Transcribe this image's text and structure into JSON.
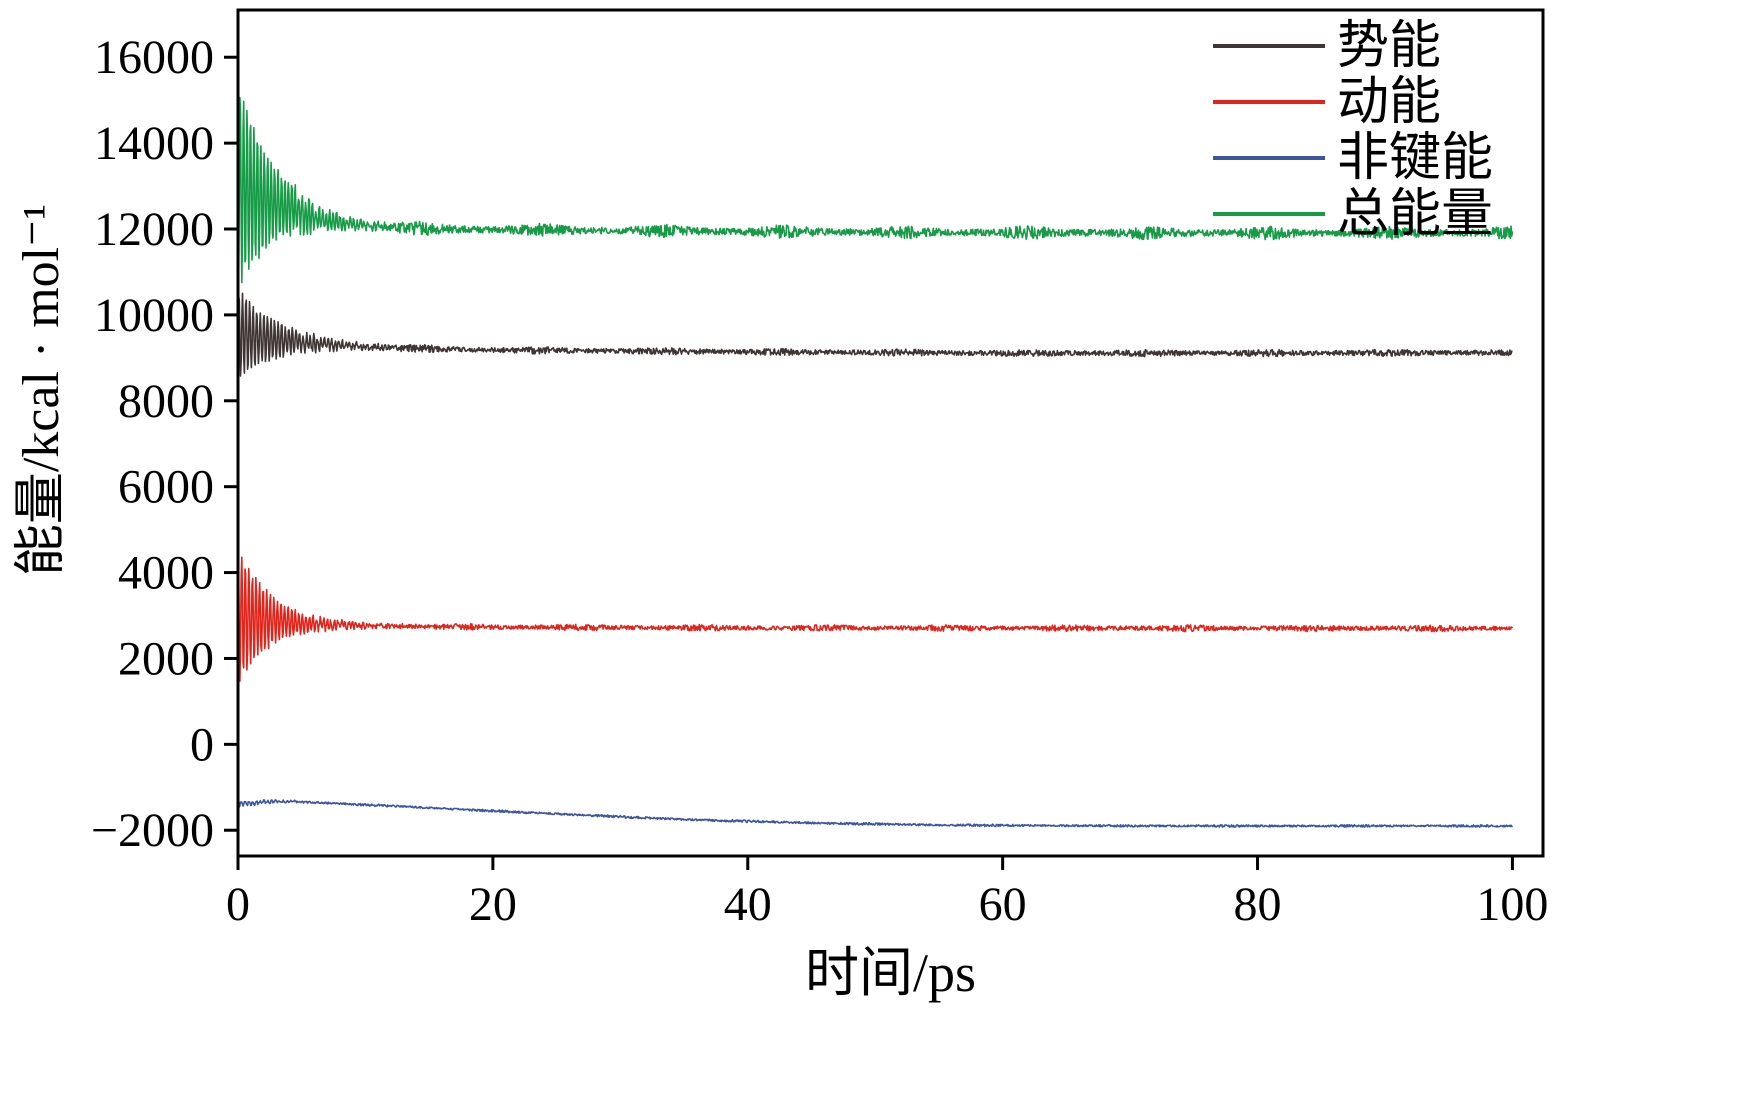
{
  "figure": {
    "background": "#ffffff",
    "axis_color": "#000000"
  },
  "chart_data": {
    "type": "line",
    "title": "",
    "xlabel": "时间/ps",
    "ylabel": "能量/kcal · mol⁻¹",
    "xlim": [
      0,
      102.4
    ],
    "ylim": [
      -2600,
      17100
    ],
    "x_ticks": [
      0,
      20,
      40,
      60,
      80,
      100
    ],
    "y_ticks": [
      -2000,
      0,
      2000,
      4000,
      6000,
      8000,
      10000,
      12000,
      14000,
      16000
    ],
    "grid": false,
    "legend_position": "top-right",
    "sample_step_ps": 0.05,
    "x_end_ps": 100,
    "series": [
      {
        "name": "势能",
        "color": "#3f3633",
        "steady_value": 9120,
        "mean_anchors": [
          [
            0,
            9550
          ],
          [
            1,
            9500
          ],
          [
            3,
            9420
          ],
          [
            6,
            9330
          ],
          [
            10,
            9260
          ],
          [
            15,
            9210
          ],
          [
            20,
            9180
          ],
          [
            30,
            9160
          ],
          [
            40,
            9140
          ],
          [
            60,
            9110
          ],
          [
            80,
            9110
          ],
          [
            100,
            9120
          ]
        ],
        "init_osc_amplitude": 1050,
        "osc_decay_ps": 3.2,
        "osc_period_ps": 0.28,
        "noise_amplitude": 55,
        "noise_burst": 0.5
      },
      {
        "name": "动能",
        "color": "#e0261c",
        "steady_value": 2700,
        "mean_anchors": [
          [
            0,
            3000
          ],
          [
            1,
            2950
          ],
          [
            3,
            2880
          ],
          [
            6,
            2800
          ],
          [
            10,
            2760
          ],
          [
            20,
            2730
          ],
          [
            40,
            2710
          ],
          [
            100,
            2700
          ]
        ],
        "init_osc_amplitude": 1600,
        "osc_decay_ps": 2.6,
        "osc_period_ps": 0.28,
        "noise_amplitude": 48,
        "noise_burst": 0.6
      },
      {
        "name": "非键能",
        "color": "#3c56a0",
        "steady_value": -1900,
        "mean_anchors": [
          [
            0,
            -1400
          ],
          [
            2,
            -1340
          ],
          [
            4,
            -1330
          ],
          [
            8,
            -1380
          ],
          [
            15,
            -1480
          ],
          [
            25,
            -1620
          ],
          [
            35,
            -1750
          ],
          [
            45,
            -1830
          ],
          [
            55,
            -1880
          ],
          [
            70,
            -1900
          ],
          [
            100,
            -1900
          ]
        ],
        "init_osc_amplitude": 60,
        "osc_decay_ps": 3.0,
        "osc_period_ps": 0.3,
        "noise_amplitude": 20,
        "noise_burst": 0.4
      },
      {
        "name": "总能量",
        "color": "#169b46",
        "steady_value": 11910,
        "mean_anchors": [
          [
            0,
            13000
          ],
          [
            1,
            12850
          ],
          [
            3,
            12550
          ],
          [
            6,
            12250
          ],
          [
            10,
            12080
          ],
          [
            15,
            12010
          ],
          [
            20,
            11980
          ],
          [
            40,
            11940
          ],
          [
            70,
            11910
          ],
          [
            100,
            11910
          ]
        ],
        "init_osc_amplitude": 2450,
        "osc_decay_ps": 2.8,
        "osc_period_ps": 0.27,
        "noise_amplitude": 75,
        "noise_burst": 1.1
      }
    ]
  }
}
